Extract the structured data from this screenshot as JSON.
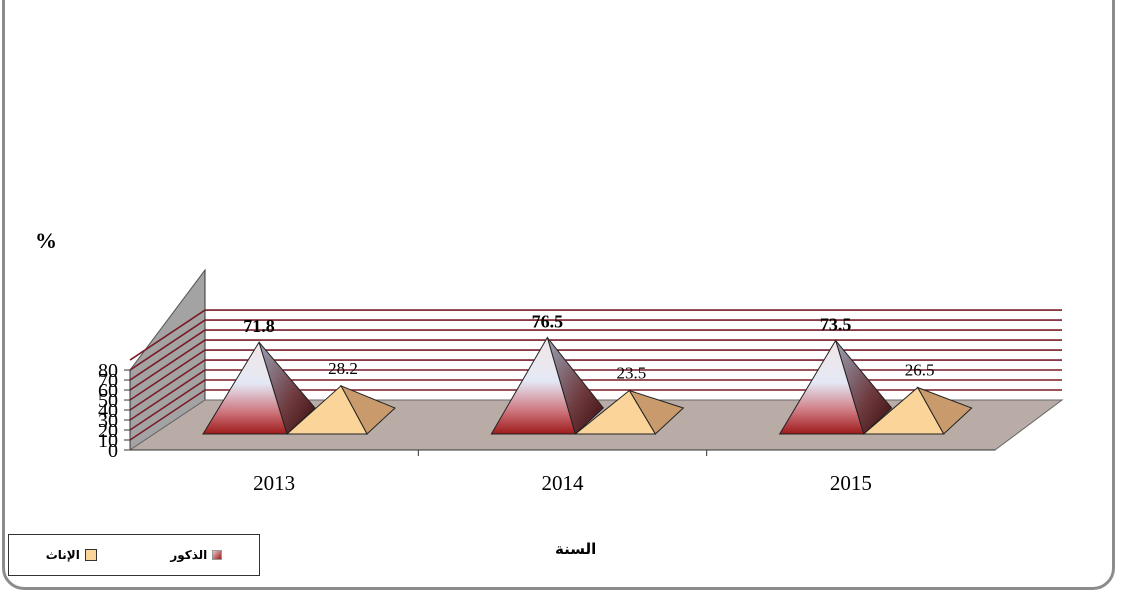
{
  "chart_data": {
    "type": "bar",
    "style": "3d-pyramid",
    "categories": [
      "2013",
      "2014",
      "2015"
    ],
    "series": [
      {
        "name": "الذكور",
        "values": [
          71.8,
          76.5,
          73.5
        ],
        "labels": [
          "71.8",
          "76.5",
          "73.5"
        ],
        "color": "#9e1b1b"
      },
      {
        "name": "الإناث",
        "values": [
          28.2,
          23.5,
          26.5
        ],
        "labels": [
          "28.2",
          "23.5",
          "26.5"
        ],
        "color": "#fbd49a"
      }
    ],
    "ylim": [
      0,
      80
    ],
    "yticks": [
      "0",
      "10",
      "20",
      "30",
      "40",
      "50",
      "60",
      "70",
      "80"
    ],
    "xlabel": "السنة",
    "ylabel": "%",
    "grid": true,
    "legend_position": "bottom-left"
  },
  "colors": {
    "wall": "#ffffff",
    "gridline": "#7a1c28",
    "side_wall": "#a3a3a3",
    "floor": "#b9aca7"
  }
}
